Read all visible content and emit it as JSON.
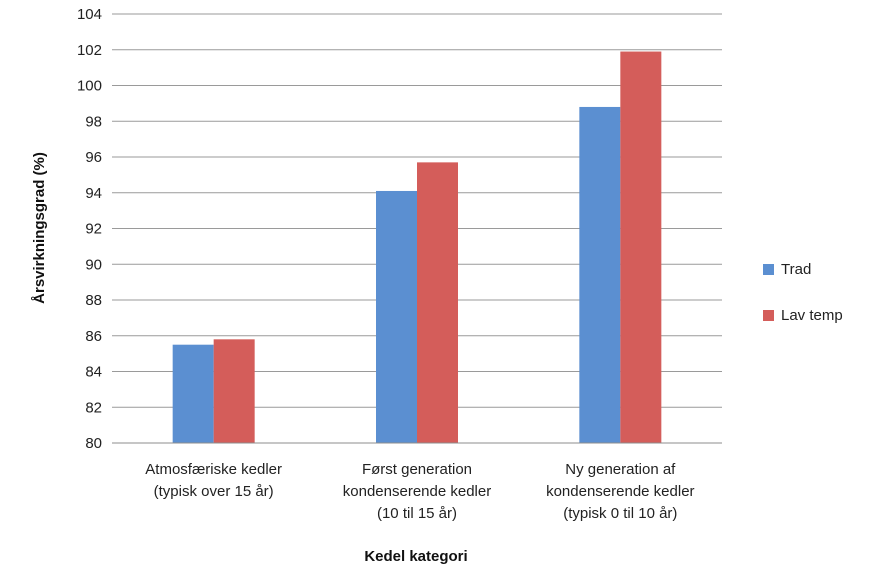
{
  "chart_data": {
    "type": "bar",
    "title": "",
    "xlabel": "Kedel kategori",
    "ylabel": "Årsvirkningsgrad (%)",
    "ylim": [
      80,
      104
    ],
    "yticks": [
      80,
      82,
      84,
      86,
      88,
      90,
      92,
      94,
      96,
      98,
      100,
      102,
      104
    ],
    "grid": true,
    "legend_position": "right",
    "categories": [
      [
        "Atmosfæriske kedler",
        "(typisk over 15 år)"
      ],
      [
        "Først generation",
        "kondenserende kedler",
        "(10 til 15 år)"
      ],
      [
        "Ny generation af",
        "kondenserende kedler",
        "(typisk 0 til 10 år)"
      ]
    ],
    "series": [
      {
        "name": "Trad",
        "color": "#5b8fd1",
        "values": [
          85.5,
          94.1,
          98.8
        ]
      },
      {
        "name": "Lav temp",
        "color": "#d45d5a",
        "values": [
          85.8,
          95.7,
          101.9
        ]
      }
    ]
  }
}
